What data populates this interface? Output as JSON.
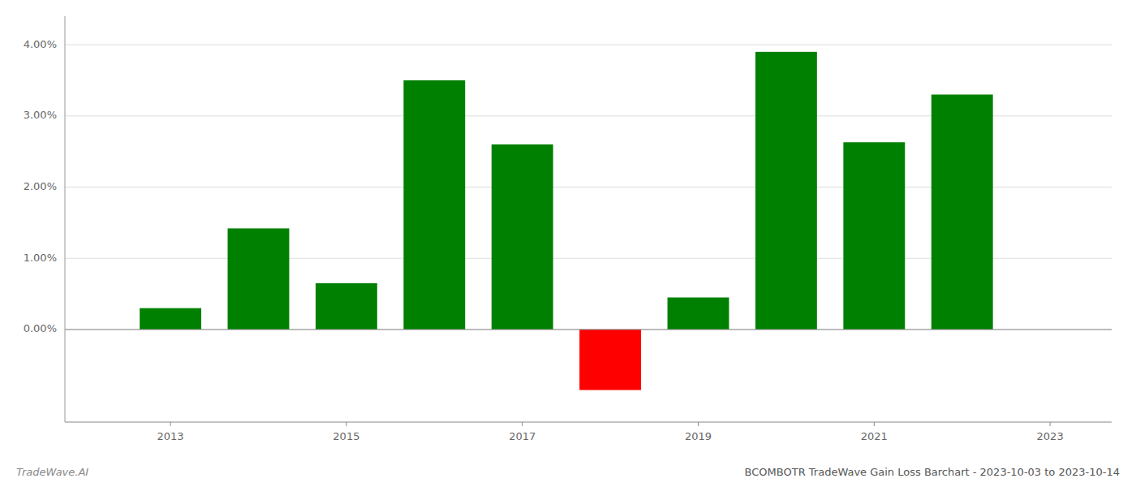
{
  "chart_data": {
    "type": "bar",
    "title": "BCOMBOTR TradeWave Gain Loss Barchart - 2023-10-03 to 2023-10-14",
    "annotations": [
      "TradeWave.AI"
    ],
    "x": [
      2013,
      2014,
      2015,
      2016,
      2017,
      2018,
      2019,
      2020,
      2021,
      2022
    ],
    "values": [
      0.003,
      0.0142,
      0.0065,
      0.035,
      0.026,
      -0.0085,
      0.0045,
      0.039,
      0.0263,
      0.033
    ],
    "colors": [
      "#008000",
      "#008000",
      "#008000",
      "#008000",
      "#008000",
      "#ff0000",
      "#008000",
      "#008000",
      "#008000",
      "#008000"
    ],
    "xlim": [
      2011.8,
      2023.7
    ],
    "xticks": [
      2013,
      2015,
      2017,
      2019,
      2021,
      2023
    ],
    "ylim": [
      -0.013,
      0.044
    ],
    "yticks": [
      {
        "value": 0.0,
        "label": "0.00%"
      },
      {
        "value": 0.01,
        "label": "1.00%"
      },
      {
        "value": 0.02,
        "label": "2.00%"
      },
      {
        "value": 0.03,
        "label": "3.00%"
      },
      {
        "value": 0.04,
        "label": "4.00%"
      }
    ],
    "grid": true
  }
}
